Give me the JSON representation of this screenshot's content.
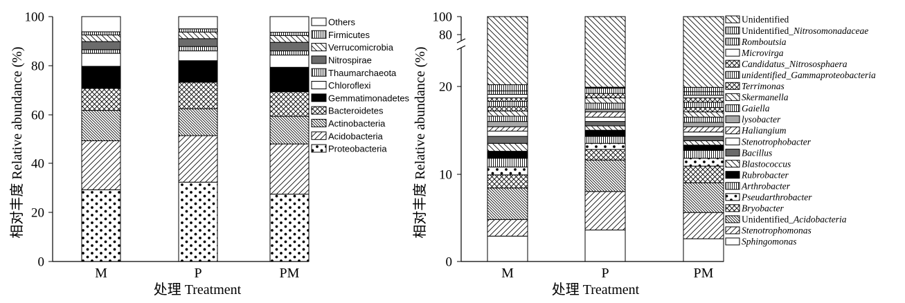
{
  "chart_data": [
    {
      "type": "bar",
      "stacked": true,
      "categories": [
        "M",
        "P",
        "PM"
      ],
      "xlabel": "处理 Treatment",
      "ylabel": "相对丰度 Relative abundance (%)",
      "ylim": [
        0,
        100
      ],
      "yticks": [
        0,
        20,
        40,
        60,
        80,
        100
      ],
      "legend_position": "right",
      "series": [
        {
          "name": "Proteobacteria",
          "pattern": "dots",
          "values": [
            29.3,
            32.4,
            27.5
          ]
        },
        {
          "name": "Acidobacteria",
          "pattern": "diag-fwd",
          "values": [
            20.0,
            19.0,
            20.5
          ]
        },
        {
          "name": "Actinobacteria",
          "pattern": "diag-back-dense",
          "values": [
            12.4,
            11.0,
            11.3
          ]
        },
        {
          "name": "Bacteroidetes",
          "pattern": "crosshatch",
          "values": [
            9.0,
            10.8,
            10.0
          ]
        },
        {
          "name": "Gemmatimonadetes",
          "pattern": "solid-black",
          "values": [
            9.0,
            8.8,
            10.0
          ]
        },
        {
          "name": "Chloroflexi",
          "pattern": "white",
          "values": [
            5.3,
            4.0,
            5.0
          ]
        },
        {
          "name": "Thaumarchaeota",
          "pattern": "vertical",
          "values": [
            1.5,
            1.8,
            1.7
          ]
        },
        {
          "name": "Nitrospirae",
          "pattern": "solid-gray",
          "values": [
            3.3,
            3.2,
            3.5
          ]
        },
        {
          "name": "Verrucomicrobia",
          "pattern": "diag-back",
          "values": [
            2.7,
            2.7,
            2.8
          ]
        },
        {
          "name": "Firmicutes",
          "pattern": "vertical",
          "values": [
            1.3,
            1.3,
            1.3
          ]
        },
        {
          "name": "Others",
          "pattern": "white",
          "values": [
            6.2,
            5.0,
            6.4
          ]
        }
      ]
    },
    {
      "type": "bar",
      "stacked": true,
      "broken_axis": true,
      "categories": [
        "M",
        "P",
        "PM"
      ],
      "xlabel": "处理 Treatment",
      "ylabel": "相对丰度 Relative abundance (%)",
      "yticks": [
        0,
        10,
        20,
        80,
        100
      ],
      "legend_position": "right",
      "series": [
        {
          "name": "Sphingomonas",
          "italic": true,
          "pattern": "white",
          "values": [
            2.9,
            3.6,
            2.6
          ]
        },
        {
          "name": "Stenotrophomonas",
          "italic": true,
          "pattern": "diag-fwd",
          "values": [
            1.9,
            4.4,
            3.0
          ]
        },
        {
          "name": "Unidentified_Acidobacteria",
          "prefix": "Unidentified_",
          "rest": "Acidobacteria",
          "pattern": "diag-back-dense",
          "values": [
            3.6,
            3.6,
            3.4
          ]
        },
        {
          "name": "Bryobacter",
          "italic": true,
          "pattern": "crosshatch",
          "values": [
            1.5,
            1.2,
            1.9
          ]
        },
        {
          "name": "Pseudarthrobacter",
          "italic": true,
          "pattern": "dots",
          "values": [
            0.9,
            0.7,
            0.9
          ]
        },
        {
          "name": "Arthrobacter",
          "italic": true,
          "pattern": "vertical",
          "values": [
            1.0,
            0.8,
            0.9
          ]
        },
        {
          "name": "Rubrobacter",
          "italic": true,
          "pattern": "solid-black",
          "values": [
            0.8,
            0.7,
            0.6
          ]
        },
        {
          "name": "Blastococcus",
          "italic": true,
          "pattern": "diag-back",
          "values": [
            0.9,
            0.5,
            0.5
          ]
        },
        {
          "name": "Bacillus",
          "italic": true,
          "pattern": "solid-gray",
          "values": [
            0.8,
            0.5,
            0.5
          ]
        },
        {
          "name": "Stenotrophobacter",
          "italic": true,
          "pattern": "white",
          "values": [
            0.6,
            0.5,
            0.5
          ]
        },
        {
          "name": "Haliangium",
          "italic": true,
          "pattern": "diag-fwd",
          "values": [
            0.5,
            0.6,
            0.6
          ]
        },
        {
          "name": "lysobacter",
          "italic": true,
          "pattern": "solid-lightgray",
          "values": [
            0.6,
            0.3,
            0.5
          ]
        },
        {
          "name": "Gaiella",
          "italic": true,
          "pattern": "vertical",
          "values": [
            0.6,
            0.7,
            0.6
          ]
        },
        {
          "name": "Skermanella",
          "italic": true,
          "pattern": "diag-back",
          "values": [
            0.6,
            0.6,
            0.6
          ]
        },
        {
          "name": "Terrimonas",
          "italic": true,
          "pattern": "crosshatch",
          "values": [
            0.5,
            0.5,
            0.5
          ]
        },
        {
          "name": "unidentified_Gammaproteobacteria",
          "italic": true,
          "pattern": "vertical",
          "values": [
            0.6,
            0.6,
            0.6
          ]
        },
        {
          "name": "Candidatus_Nitrososphaera",
          "italic": true,
          "pattern": "crosshatch",
          "values": [
            0.4,
            0.5,
            0.5
          ]
        },
        {
          "name": "Microvirga",
          "italic": true,
          "pattern": "white",
          "values": [
            0.4,
            0.3,
            0.3
          ]
        },
        {
          "name": "Romboutsia",
          "italic": true,
          "pattern": "vertical",
          "values": [
            0.4,
            0.4,
            0.4
          ]
        },
        {
          "name": "Unidentified_Nitrosomonadaceae",
          "prefix": "Unidentified_",
          "rest": "Nitrosomonadaceae",
          "pattern": "vertical",
          "values": [
            0.7,
            0.5,
            0.5
          ]
        },
        {
          "name": "Unidentified",
          "pattern": "diag-back",
          "values": [
            78.8,
            78.0,
            78.7
          ]
        }
      ]
    }
  ]
}
